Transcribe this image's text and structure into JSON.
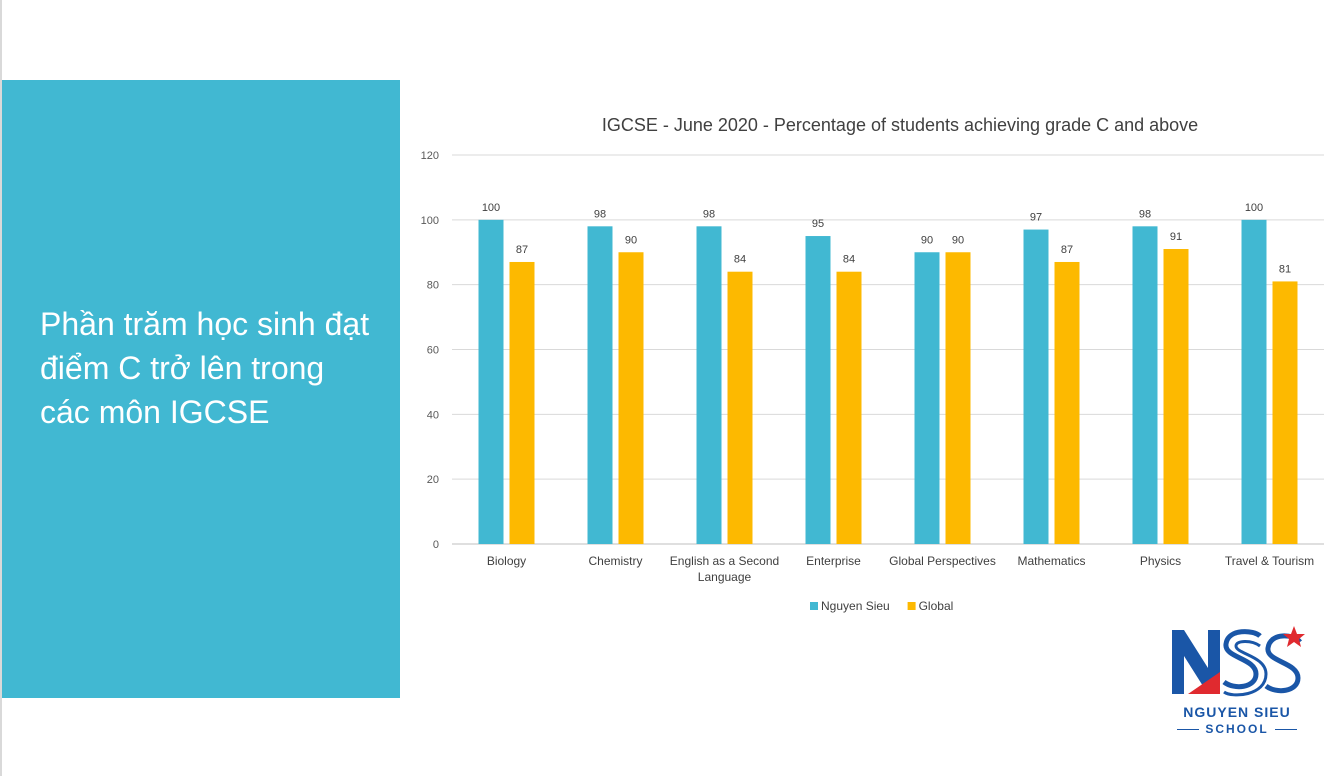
{
  "slide": {
    "heading": "Phần trăm học sinh đạt điểm C trở lên trong các môn IGCSE",
    "panel_color": "#41b8d2"
  },
  "logo": {
    "name": "NGUYEN SIEU",
    "sub": "SCHOOL",
    "mark_letters": "NSS",
    "colors": {
      "blue": "#1a56a7",
      "red": "#e02a2f"
    }
  },
  "chart_data": {
    "type": "bar",
    "title": "IGCSE - June 2020 - Percentage of students achieving grade C and above",
    "categories": [
      [
        "Biology"
      ],
      [
        "Chemistry"
      ],
      [
        "English as a Second",
        "Language"
      ],
      [
        "Enterprise"
      ],
      [
        "Global Perspectives"
      ],
      [
        "Mathematics"
      ],
      [
        "Physics"
      ],
      [
        "Travel & Tourism"
      ]
    ],
    "series": [
      {
        "name": "Nguyen Sieu",
        "color": "#41b8d2",
        "values": [
          100,
          98,
          98,
          95,
          90,
          97,
          98,
          100
        ],
        "labels": [
          "100",
          "98",
          "98",
          "95",
          "90",
          "97",
          "98",
          "100"
        ]
      },
      {
        "name": "Global",
        "color": "#fdb900",
        "values": [
          87,
          90,
          84,
          84,
          90,
          87,
          91,
          81
        ],
        "labels": [
          "87",
          "90",
          "84",
          "84",
          "90",
          "87",
          "91",
          "81"
        ]
      }
    ],
    "ylim": [
      0,
      120
    ],
    "yticks": [
      0,
      20,
      40,
      60,
      80,
      100,
      120
    ],
    "grid": true,
    "legend": "bottom"
  }
}
